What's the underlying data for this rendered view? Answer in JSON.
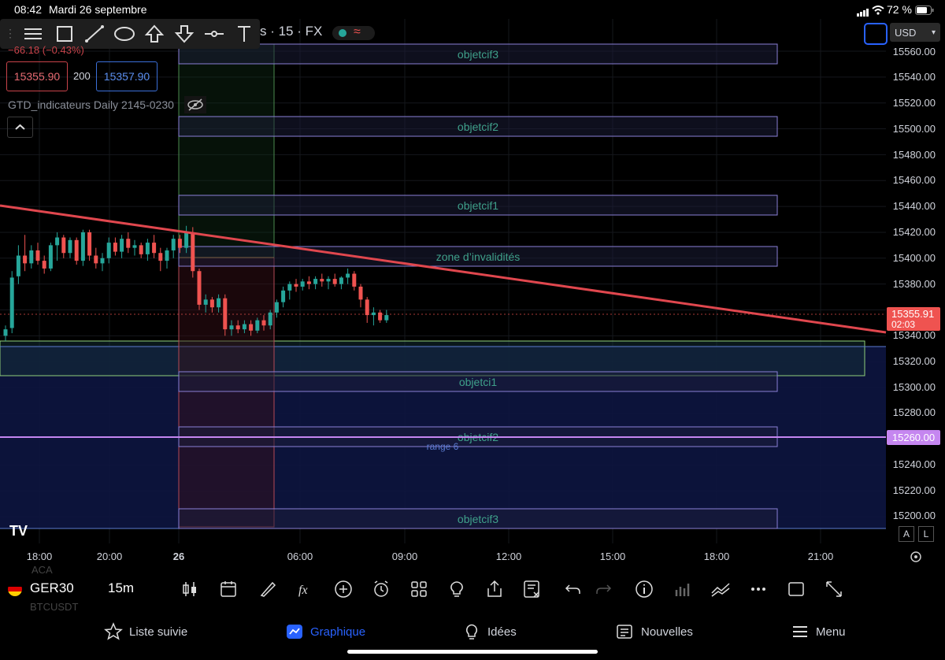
{
  "status_bar": {
    "time": "08:42",
    "date": "Mardi 26 septembre",
    "battery": "72 %"
  },
  "header": {
    "symbol_title": "s · 15 · FX",
    "price_change": "−66.18 (−0.43%)",
    "bid": "15355.90",
    "spread": "200",
    "ask": "15357.90",
    "indicator": "GTD_indicateurs Daily 2145-0230",
    "currency": "USD"
  },
  "price_axis": {
    "labels": [
      "15560.00",
      "15540.00",
      "15520.00",
      "15500.00",
      "15480.00",
      "15460.00",
      "15440.00",
      "15420.00",
      "15400.00",
      "15380.00",
      "15340.00",
      "15320.00",
      "15300.00",
      "15280.00",
      "15240.00",
      "15220.00",
      "15200.00"
    ],
    "current_price": "15355.91",
    "countdown": "02:03",
    "line_price": "15260.00"
  },
  "time_axis": {
    "labels": [
      "18:00",
      "20:00",
      "26",
      "06:00",
      "09:00",
      "12:00",
      "15:00",
      "18:00",
      "21:00"
    ]
  },
  "zones": {
    "obj3_top": "objetcif3",
    "obj2_top": "objetcif2",
    "obj1_top": "objetcif1",
    "invalid": "zone d’invalidités",
    "obj1_bottom": "objetci1",
    "obj2_bottom": "objetcif2",
    "range": "range 6",
    "obj3_bottom": "objetcif3"
  },
  "colors": {
    "up": "#26a69a",
    "down": "#ef5350",
    "trend": "#e0474e",
    "zone_border": "#8a7fd6",
    "range_line": "#c586f0"
  },
  "scale_buttons": {
    "auto": "A",
    "log": "L"
  },
  "bottom_toolbar": {
    "symbol": "GER30",
    "interval": "15m",
    "watchlist_above": "ACA",
    "watchlist_below": "BTCUSDT"
  },
  "tabs": {
    "watchlist": "Liste suivie",
    "chart": "Graphique",
    "ideas": "Idées",
    "news": "Nouvelles",
    "menu": "Menu"
  },
  "chart_data": {
    "type": "candlestick",
    "instrument": "GER30",
    "interval": "15m",
    "y_range": [
      15190,
      15570
    ],
    "current_price": 15355.91,
    "trendline": {
      "from": [
        "17:00",
        15450
      ],
      "to": [
        "21:30",
        15345
      ]
    },
    "horizontal_line": 15260,
    "candles": [
      {
        "o": 15340,
        "h": 15348,
        "l": 15336,
        "c": 15345
      },
      {
        "o": 15346,
        "h": 15390,
        "l": 15342,
        "c": 15385
      },
      {
        "o": 15386,
        "h": 15410,
        "l": 15380,
        "c": 15402
      },
      {
        "o": 15402,
        "h": 15418,
        "l": 15390,
        "c": 15396
      },
      {
        "o": 15396,
        "h": 15410,
        "l": 15392,
        "c": 15406
      },
      {
        "o": 15406,
        "h": 15412,
        "l": 15395,
        "c": 15398
      },
      {
        "o": 15398,
        "h": 15402,
        "l": 15388,
        "c": 15392
      },
      {
        "o": 15392,
        "h": 15412,
        "l": 15390,
        "c": 15410
      },
      {
        "o": 15410,
        "h": 15420,
        "l": 15398,
        "c": 15416
      },
      {
        "o": 15416,
        "h": 15418,
        "l": 15400,
        "c": 15404
      },
      {
        "o": 15404,
        "h": 15416,
        "l": 15400,
        "c": 15414
      },
      {
        "o": 15414,
        "h": 15416,
        "l": 15395,
        "c": 15398
      },
      {
        "o": 15398,
        "h": 15422,
        "l": 15394,
        "c": 15420
      },
      {
        "o": 15420,
        "h": 15422,
        "l": 15398,
        "c": 15402
      },
      {
        "o": 15402,
        "h": 15408,
        "l": 15392,
        "c": 15396
      },
      {
        "o": 15396,
        "h": 15404,
        "l": 15390,
        "c": 15400
      },
      {
        "o": 15400,
        "h": 15416,
        "l": 15396,
        "c": 15412
      },
      {
        "o": 15412,
        "h": 15416,
        "l": 15402,
        "c": 15405
      },
      {
        "o": 15405,
        "h": 15418,
        "l": 15400,
        "c": 15415
      },
      {
        "o": 15415,
        "h": 15420,
        "l": 15404,
        "c": 15408
      },
      {
        "o": 15408,
        "h": 15414,
        "l": 15402,
        "c": 15410
      },
      {
        "o": 15410,
        "h": 15412,
        "l": 15400,
        "c": 15403
      },
      {
        "o": 15403,
        "h": 15415,
        "l": 15398,
        "c": 15412
      },
      {
        "o": 15412,
        "h": 15418,
        "l": 15400,
        "c": 15404
      },
      {
        "o": 15404,
        "h": 15408,
        "l": 15390,
        "c": 15398
      },
      {
        "o": 15398,
        "h": 15408,
        "l": 15392,
        "c": 15406
      },
      {
        "o": 15406,
        "h": 15418,
        "l": 15400,
        "c": 15415
      },
      {
        "o": 15415,
        "h": 15418,
        "l": 15404,
        "c": 15408
      },
      {
        "o": 15408,
        "h": 15425,
        "l": 15404,
        "c": 15420
      },
      {
        "o": 15420,
        "h": 15424,
        "l": 15385,
        "c": 15390
      },
      {
        "o": 15390,
        "h": 15392,
        "l": 15360,
        "c": 15364
      },
      {
        "o": 15364,
        "h": 15372,
        "l": 15358,
        "c": 15368
      },
      {
        "o": 15368,
        "h": 15370,
        "l": 15358,
        "c": 15362
      },
      {
        "o": 15362,
        "h": 15372,
        "l": 15358,
        "c": 15369
      },
      {
        "o": 15369,
        "h": 15372,
        "l": 15340,
        "c": 15345
      },
      {
        "o": 15345,
        "h": 15352,
        "l": 15340,
        "c": 15348
      },
      {
        "o": 15348,
        "h": 15352,
        "l": 15342,
        "c": 15345
      },
      {
        "o": 15345,
        "h": 15352,
        "l": 15342,
        "c": 15349
      },
      {
        "o": 15349,
        "h": 15352,
        "l": 15340,
        "c": 15344
      },
      {
        "o": 15344,
        "h": 15354,
        "l": 15342,
        "c": 15352
      },
      {
        "o": 15352,
        "h": 15356,
        "l": 15344,
        "c": 15348
      },
      {
        "o": 15348,
        "h": 15360,
        "l": 15345,
        "c": 15358
      },
      {
        "o": 15358,
        "h": 15368,
        "l": 15354,
        "c": 15366
      },
      {
        "o": 15366,
        "h": 15378,
        "l": 15362,
        "c": 15375
      },
      {
        "o": 15375,
        "h": 15382,
        "l": 15368,
        "c": 15380
      },
      {
        "o": 15380,
        "h": 15384,
        "l": 15374,
        "c": 15378
      },
      {
        "o": 15378,
        "h": 15384,
        "l": 15375,
        "c": 15382
      },
      {
        "o": 15382,
        "h": 15386,
        "l": 15376,
        "c": 15380
      },
      {
        "o": 15380,
        "h": 15386,
        "l": 15376,
        "c": 15384
      },
      {
        "o": 15384,
        "h": 15388,
        "l": 15378,
        "c": 15382
      },
      {
        "o": 15382,
        "h": 15386,
        "l": 15376,
        "c": 15384
      },
      {
        "o": 15384,
        "h": 15388,
        "l": 15378,
        "c": 15380
      },
      {
        "o": 15380,
        "h": 15386,
        "l": 15376,
        "c": 15385
      },
      {
        "o": 15385,
        "h": 15392,
        "l": 15380,
        "c": 15388
      },
      {
        "o": 15388,
        "h": 15390,
        "l": 15375,
        "c": 15378
      },
      {
        "o": 15378,
        "h": 15380,
        "l": 15362,
        "c": 15368
      },
      {
        "o": 15368,
        "h": 15370,
        "l": 15350,
        "c": 15356
      },
      {
        "o": 15356,
        "h": 15362,
        "l": 15348,
        "c": 15358
      },
      {
        "o": 15358,
        "h": 15360,
        "l": 15350,
        "c": 15352
      },
      {
        "o": 15352,
        "h": 15360,
        "l": 15350,
        "c": 15356
      }
    ]
  }
}
